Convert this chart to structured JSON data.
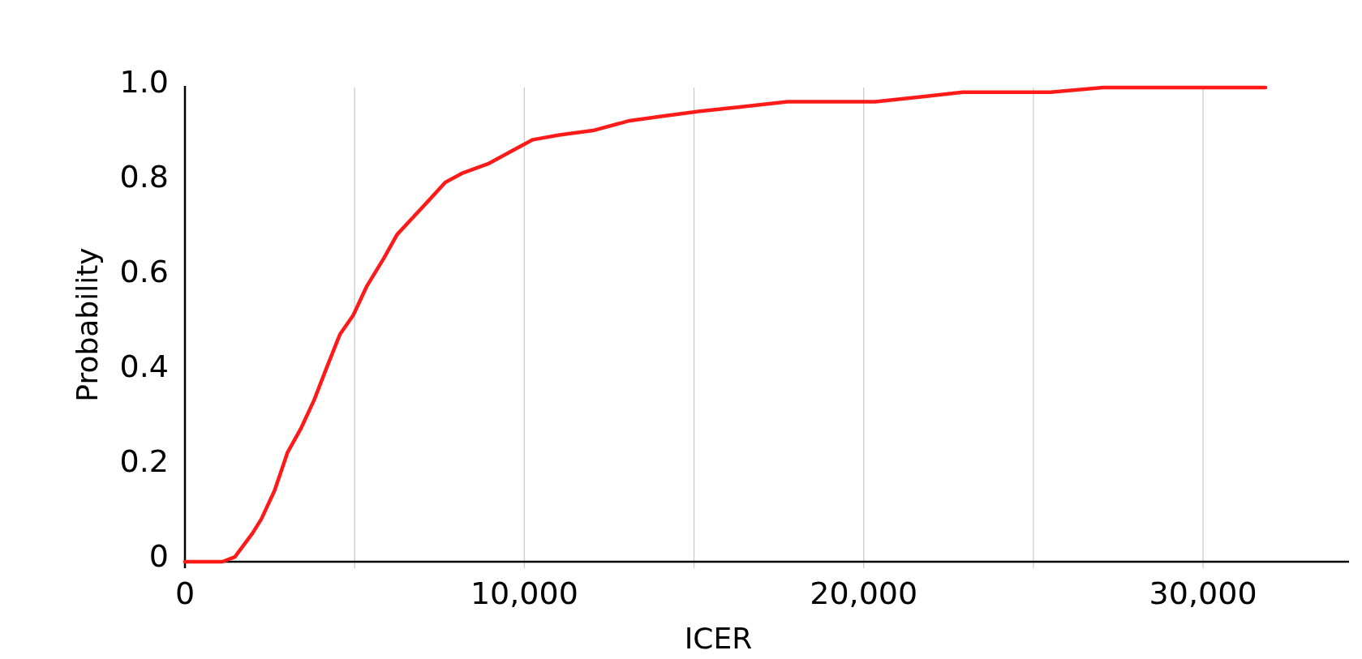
{
  "chart_data": {
    "type": "line",
    "xlabel": "ICER",
    "ylabel": "Probability",
    "x": [
      0,
      1100,
      1470,
      1990,
      2250,
      2640,
      3020,
      3410,
      3800,
      4180,
      4570,
      4960,
      5350,
      5860,
      6250,
      6640,
      7160,
      7670,
      8190,
      8960,
      9730,
      10250,
      11030,
      12060,
      13100,
      14130,
      15170,
      16460,
      17750,
      19300,
      20340,
      21630,
      22920,
      24210,
      25500,
      27050,
      28600,
      31840
    ],
    "series": [
      {
        "color": "#ff1a1a",
        "values": [
          0,
          0,
          0.01,
          0.06,
          0.09,
          0.15,
          0.23,
          0.28,
          0.34,
          0.41,
          0.48,
          0.52,
          0.58,
          0.64,
          0.69,
          0.72,
          0.76,
          0.8,
          0.82,
          0.84,
          0.87,
          0.89,
          0.9,
          0.91,
          0.93,
          0.94,
          0.95,
          0.96,
          0.97,
          0.97,
          0.97,
          0.98,
          0.99,
          0.99,
          0.99,
          1.0,
          1.0,
          1.0
        ]
      }
    ],
    "xlim": [
      0,
      34300
    ],
    "ylim": [
      0,
      1
    ],
    "xticks": [
      0,
      {
        "value": 5000,
        "label": null
      },
      {
        "value": 10000,
        "label": "10,000"
      },
      {
        "value": 15000,
        "label": null
      },
      {
        "value": 20000,
        "label": "20,000"
      },
      {
        "value": 25000,
        "label": null
      },
      {
        "value": 30000,
        "label": "30,000"
      }
    ],
    "yticks": [
      0,
      0.2,
      0.4,
      0.6,
      0.8,
      {
        "value": 1,
        "label": "1.0"
      }
    ],
    "grid": "x",
    "marker": "none",
    "line_style": "solid"
  }
}
